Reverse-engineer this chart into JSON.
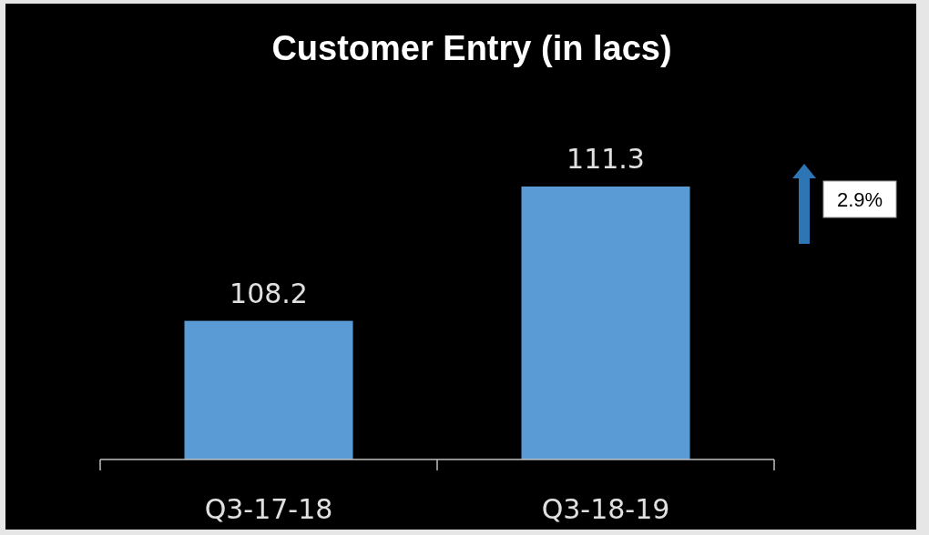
{
  "chart_data": {
    "type": "bar",
    "title": "Customer Entry (in lacs)",
    "categories": [
      "Q3-17-18",
      "Q3-18-19"
    ],
    "values": [
      108.2,
      111.3
    ],
    "color": "#5b9bd5",
    "ylim": [
      105,
      111.3
    ],
    "tick_labels": "x",
    "data_labels": true,
    "annotations": [
      "2.9%"
    ]
  }
}
